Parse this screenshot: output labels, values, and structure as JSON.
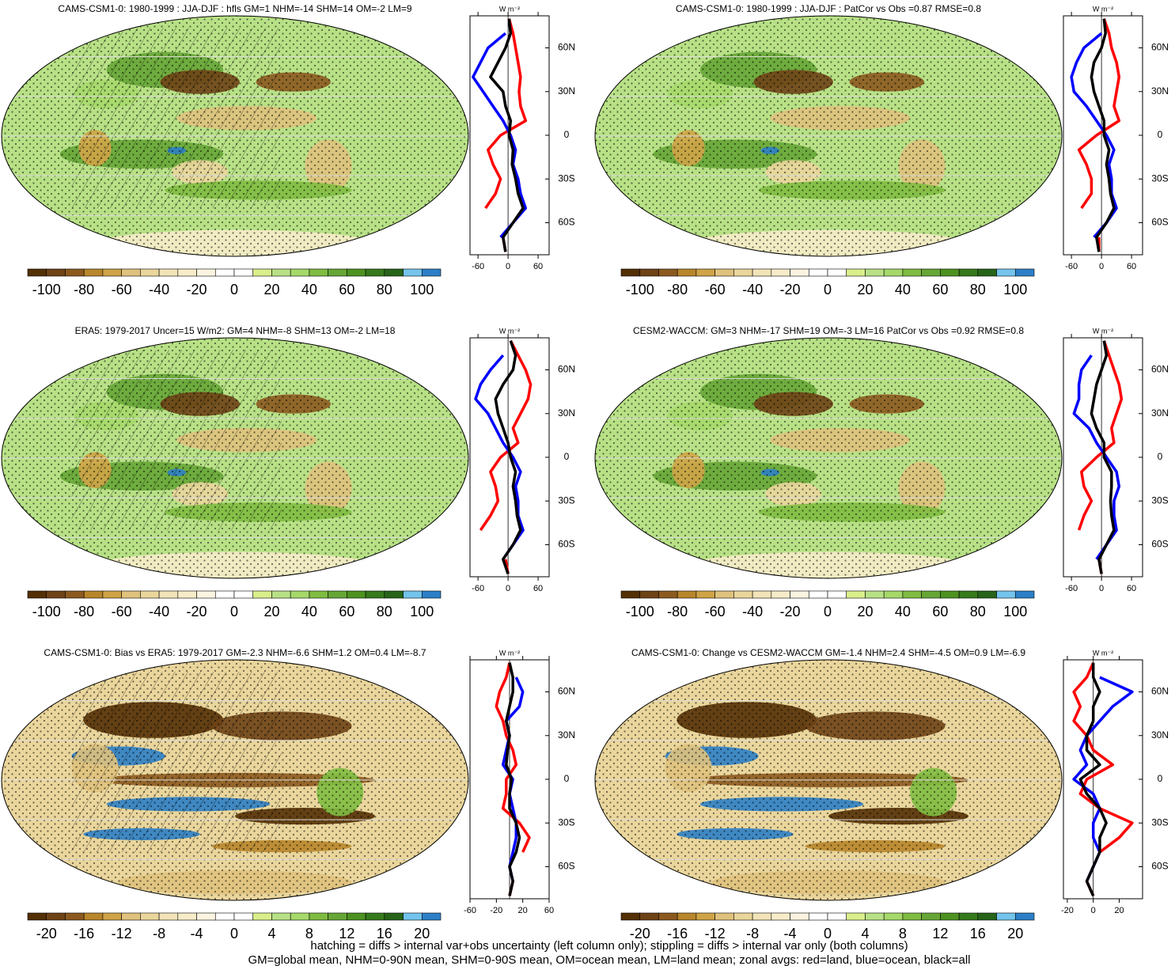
{
  "chart_data": [
    {
      "type": "map",
      "title": "CAMS-CSM1-0: 1980-1999 : JJA-DJF : hfls GM=1 NHM=-14 SHM=14 OM=-2 LM=9",
      "colorbar": {
        "ticks": [
          -100,
          -80,
          -60,
          -40,
          -20,
          0,
          20,
          40,
          60,
          80,
          100
        ]
      },
      "zonal": {
        "type": "line",
        "xlabel": "W m⁻²",
        "xlim": [
          -76,
          82
        ],
        "xticks": [
          -60,
          0,
          60
        ],
        "ylim": [
          -82,
          82
        ],
        "yticks": [
          {
            "value": 60,
            "label": "60N"
          },
          {
            "value": 30,
            "label": "30N"
          },
          0,
          {
            "value": -30,
            "label": "30S"
          },
          {
            "value": -60,
            "label": "60S"
          }
        ],
        "y": [
          80,
          70,
          60,
          50,
          40,
          30,
          20,
          10,
          0,
          -10,
          -20,
          -30,
          -40,
          -50,
          -60,
          -70,
          -80
        ],
        "series": [
          {
            "color": "#ff0000",
            "values": [
              2,
              10,
              15,
              20,
              25,
              22,
              25,
              35,
              -15,
              -40,
              -30,
              -15,
              -25,
              -45,
              null,
              -10,
              -5
            ]
          },
          {
            "color": "#0000ff",
            "values": [
              null,
              -5,
              -40,
              -55,
              -70,
              -50,
              -30,
              -10,
              5,
              15,
              10,
              20,
              25,
              35,
              10,
              -15,
              null
            ]
          },
          {
            "color": "#000000",
            "values": [
              2,
              5,
              -5,
              -20,
              -35,
              -10,
              -5,
              5,
              2,
              10,
              8,
              15,
              20,
              30,
              10,
              -10,
              -5
            ]
          }
        ]
      }
    },
    {
      "type": "map",
      "title": "CAMS-CSM1-0: 1980-1999 : JJA-DJF : PatCor vs Obs =0.87 RMSE=0.8",
      "colorbar": {
        "ticks": [
          -100,
          -80,
          -60,
          -40,
          -20,
          0,
          20,
          40,
          60,
          80,
          100
        ]
      },
      "zonal": {
        "type": "line",
        "xlabel": "W m⁻²",
        "xlim": [
          -76,
          82
        ],
        "xticks": [
          -60,
          0,
          60
        ],
        "ylim": [
          -82,
          82
        ],
        "yticks": [
          {
            "value": 60,
            "label": "60N"
          },
          {
            "value": 30,
            "label": "30N"
          },
          0,
          {
            "value": -30,
            "label": "30S"
          },
          {
            "value": -60,
            "label": "60S"
          }
        ],
        "y": [
          80,
          70,
          60,
          50,
          40,
          30,
          20,
          10,
          0,
          -10,
          -20,
          -30,
          -40,
          -50,
          -60,
          -70,
          -80
        ],
        "series": [
          {
            "color": "#ff0000",
            "values": [
              5,
              15,
              20,
              30,
              35,
              30,
              25,
              35,
              -10,
              -45,
              -30,
              -20,
              -20,
              -40,
              null,
              -5,
              -5
            ]
          },
          {
            "color": "#0000ff",
            "values": [
              null,
              0,
              -35,
              -50,
              -60,
              -55,
              -30,
              -10,
              10,
              25,
              15,
              20,
              20,
              30,
              10,
              -15,
              null
            ]
          },
          {
            "color": "#000000",
            "values": [
              5,
              8,
              0,
              -15,
              -20,
              -15,
              -5,
              5,
              5,
              15,
              10,
              15,
              18,
              25,
              10,
              -10,
              -5
            ]
          }
        ]
      }
    },
    {
      "type": "map",
      "title": "ERA5: 1979-2017 Uncer=15 W/m2: GM=4 NHM=-8 SHM=13 OM=-2 LM=18",
      "colorbar": {
        "ticks": [
          -100,
          -80,
          -60,
          -40,
          -20,
          0,
          20,
          40,
          60,
          80,
          100
        ]
      },
      "zonal": {
        "type": "line",
        "xlabel": "W m⁻²",
        "xlim": [
          -76,
          82
        ],
        "xticks": [
          -60,
          0,
          60
        ],
        "ylim": [
          -82,
          82
        ],
        "yticks": [
          {
            "value": 60,
            "label": "60N"
          },
          {
            "value": 30,
            "label": "30N"
          },
          0,
          {
            "value": -30,
            "label": "30S"
          },
          {
            "value": -60,
            "label": "60S"
          }
        ],
        "y": [
          80,
          70,
          60,
          50,
          40,
          30,
          20,
          10,
          0,
          -10,
          -20,
          -30,
          -40,
          -50,
          -60,
          -70,
          -80
        ],
        "series": [
          {
            "color": "#ff0000",
            "values": [
              5,
              20,
              35,
              45,
              40,
              25,
              10,
              20,
              -15,
              -35,
              -25,
              -20,
              -35,
              -55,
              null,
              -5,
              0
            ]
          },
          {
            "color": "#0000ff",
            "values": [
              null,
              -10,
              -35,
              -55,
              -65,
              -40,
              -25,
              -10,
              10,
              25,
              15,
              20,
              20,
              30,
              10,
              -10,
              null
            ]
          },
          {
            "color": "#000000",
            "values": [
              5,
              15,
              10,
              -10,
              -25,
              -20,
              -10,
              0,
              5,
              15,
              10,
              15,
              18,
              25,
              10,
              -10,
              0
            ]
          }
        ]
      }
    },
    {
      "type": "map",
      "title": "CESM2-WACCM: GM=3 NHM=-17 SHM=19 OM=-3 LM=16 PatCor vs Obs =0.92 RMSE=0.8",
      "colorbar": {
        "ticks": [
          -100,
          -80,
          -60,
          -40,
          -20,
          0,
          20,
          40,
          60,
          80,
          100
        ]
      },
      "zonal": {
        "type": "line",
        "xlabel": "W m⁻²",
        "xlim": [
          -76,
          82
        ],
        "xticks": [
          -60,
          0,
          60
        ],
        "ylim": [
          -82,
          82
        ],
        "yticks": [
          {
            "value": 60,
            "label": "60N"
          },
          {
            "value": 30,
            "label": "30N"
          },
          0,
          {
            "value": -30,
            "label": "30S"
          },
          {
            "value": -60,
            "label": "60S"
          }
        ],
        "y": [
          80,
          70,
          60,
          50,
          40,
          30,
          20,
          10,
          0,
          -10,
          -20,
          -30,
          -40,
          -50,
          -60,
          -70,
          -80
        ],
        "series": [
          {
            "color": "#ff0000",
            "values": [
              5,
              15,
              25,
              35,
              40,
              30,
              20,
              25,
              -10,
              -40,
              -35,
              -20,
              -35,
              -45,
              null,
              -5,
              0
            ]
          },
          {
            "color": "#0000ff",
            "values": [
              null,
              -20,
              -40,
              -45,
              -45,
              -55,
              -25,
              -10,
              10,
              30,
              35,
              25,
              25,
              30,
              10,
              -10,
              null
            ]
          },
          {
            "color": "#000000",
            "values": [
              5,
              10,
              0,
              -10,
              -15,
              -20,
              -10,
              5,
              5,
              20,
              20,
              18,
              20,
              25,
              10,
              -5,
              0
            ]
          }
        ]
      }
    },
    {
      "type": "map",
      "title": "CAMS-CSM1-0: Bias vs ERA5: 1979-2017 GM=-2.3 NHM=-6.6 SHM=1.2 OM=0.4 LM=-8.7",
      "colorbar": {
        "ticks": [
          -20,
          -16,
          -12,
          -8,
          -4,
          0,
          4,
          8,
          12,
          16,
          20
        ]
      },
      "zonal": {
        "type": "line",
        "xlabel": "W m⁻²",
        "xlim": [
          -60,
          60
        ],
        "xticks": [
          -60,
          -20,
          20,
          60
        ],
        "ylim": [
          -82,
          82
        ],
        "yticks": [
          {
            "value": 60,
            "label": "60N"
          },
          {
            "value": 30,
            "label": "30N"
          },
          0,
          {
            "value": -30,
            "label": "30S"
          },
          {
            "value": -60,
            "label": "60S"
          }
        ],
        "y": [
          80,
          70,
          60,
          50,
          40,
          30,
          20,
          10,
          0,
          -10,
          -20,
          -30,
          -40,
          -50,
          -60,
          -70,
          -80
        ],
        "series": [
          {
            "color": "#ff0000",
            "values": [
              0,
              -5,
              -15,
              -20,
              -10,
              -5,
              5,
              10,
              -5,
              -5,
              -10,
              15,
              30,
              20,
              null,
              5,
              0
            ]
          },
          {
            "color": "#0000ff",
            "values": [
              null,
              10,
              20,
              15,
              -5,
              0,
              -5,
              -10,
              5,
              0,
              5,
              10,
              10,
              5,
              0,
              5,
              null
            ]
          },
          {
            "color": "#000000",
            "values": [
              0,
              5,
              5,
              0,
              -5,
              0,
              -3,
              -5,
              3,
              0,
              0,
              10,
              15,
              10,
              0,
              5,
              0
            ]
          }
        ]
      }
    },
    {
      "type": "map",
      "title": "CAMS-CSM1-0: Change vs CESM2-WACCM GM=-1.4 NHM=2.4 SHM=-4.5 OM=0.9 LM=-6.9",
      "colorbar": {
        "ticks": [
          -20,
          -16,
          -12,
          -8,
          -4,
          0,
          4,
          8,
          12,
          16,
          20
        ]
      },
      "zonal": {
        "type": "line",
        "xlabel": "W m⁻²",
        "xlim": [
          -23,
          38
        ],
        "xticks": [
          -20,
          0,
          20
        ],
        "ylim": [
          -82,
          82
        ],
        "yticks": [
          {
            "value": 60,
            "label": "60N"
          },
          {
            "value": 30,
            "label": "30N"
          },
          0,
          {
            "value": -30,
            "label": "30S"
          },
          {
            "value": -60,
            "label": "60S"
          }
        ],
        "y": [
          80,
          70,
          60,
          50,
          40,
          30,
          20,
          10,
          0,
          -10,
          -20,
          -30,
          -40,
          -50,
          -60,
          -70,
          -80
        ],
        "series": [
          {
            "color": "#ff0000",
            "values": [
              0,
              -5,
              -15,
              -10,
              -15,
              -5,
              0,
              15,
              -5,
              -10,
              5,
              30,
              20,
              5,
              null,
              -5,
              0
            ]
          },
          {
            "color": "#0000ff",
            "values": [
              null,
              5,
              30,
              15,
              5,
              -5,
              -10,
              -5,
              -15,
              0,
              5,
              0,
              0,
              5,
              0,
              -5,
              null
            ]
          },
          {
            "color": "#000000",
            "values": [
              0,
              0,
              5,
              0,
              0,
              -5,
              -5,
              5,
              -10,
              -5,
              5,
              10,
              5,
              5,
              0,
              -5,
              0
            ]
          }
        ]
      }
    }
  ],
  "colorbar_colors": [
    "#543005",
    "#6e4316",
    "#8c5a1f",
    "#b8862b",
    "#cfa447",
    "#dfc27d",
    "#ead69c",
    "#f2e4b8",
    "#f6ecc9",
    "#faf4e0",
    "#ffffff",
    "#ffffff",
    "#d9ef8b",
    "#b8e186",
    "#a6d96a",
    "#7fbc41",
    "#66a636",
    "#4d9221",
    "#367a1c",
    "#276419",
    "#74c4ec",
    "#2c7fc7"
  ],
  "footer": [
    "hatching = diffs > internal var+obs uncertainty (left column only); stippling = diffs > internal var only (both columns)",
    "GM=global mean, NHM=0-90N mean, SHM=0-90S mean, OM=ocean mean, LM=land mean; zonal avgs: red=land, blue=ocean, black=all"
  ]
}
